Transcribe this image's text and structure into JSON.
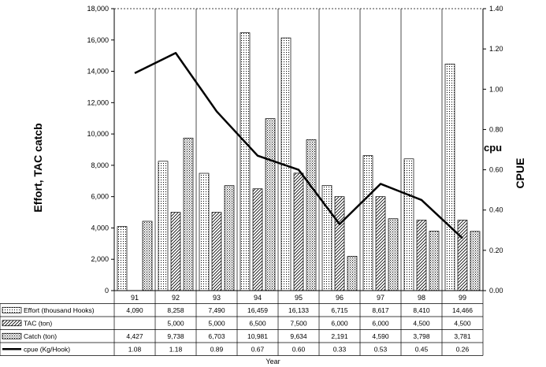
{
  "chart_data": {
    "type": "bar",
    "title": "",
    "xlabel": "Year",
    "ylabel": "Effort, TAC catcb",
    "y2label": "CPUE",
    "y2_inner_label": "cpu",
    "categories": [
      "91",
      "92",
      "93",
      "94",
      "95",
      "96",
      "97",
      "98",
      "99"
    ],
    "ylim": [
      0,
      18000
    ],
    "yticks": [
      "0",
      "2,000",
      "4,000",
      "6,000",
      "8,000",
      "10,000",
      "12,000",
      "14,000",
      "16,000",
      "18,000"
    ],
    "y2lim": [
      0,
      1.4
    ],
    "y2ticks": [
      "0.00",
      "0.20",
      "0.40",
      "0.60",
      "0.80",
      "1.00",
      "1.20",
      "1.40"
    ],
    "grid": "vertical",
    "series": [
      {
        "name": "Effort (thousand Hooks)",
        "kind": "bar",
        "pattern": "dots",
        "values": [
          4090,
          8258,
          7490,
          16459,
          16133,
          6715,
          8617,
          8410,
          14466
        ],
        "labels": [
          "4,090",
          "8,258",
          "7,490",
          "16,459",
          "16,133",
          "6,715",
          "8,617",
          "8,410",
          "14,466"
        ]
      },
      {
        "name": "TAC (ton)",
        "kind": "bar",
        "pattern": "hatch",
        "values": [
          null,
          5000,
          5000,
          6500,
          7500,
          6000,
          6000,
          4500,
          4500
        ],
        "labels": [
          "",
          "5,000",
          "5,000",
          "6,500",
          "7,500",
          "6,000",
          "6,000",
          "4,500",
          "4,500"
        ]
      },
      {
        "name": "Catch (ton)",
        "kind": "bar",
        "pattern": "grid",
        "values": [
          4427,
          9738,
          6703,
          10981,
          9634,
          2191,
          4590,
          3798,
          3781
        ],
        "labels": [
          "4,427",
          "9,738",
          "6,703",
          "10,981",
          "9,634",
          "2,191",
          "4,590",
          "3,798",
          "3,781"
        ]
      },
      {
        "name": "cpue (Kg/Hook)",
        "kind": "line",
        "axis": "right",
        "values": [
          1.08,
          1.18,
          0.89,
          0.67,
          0.6,
          0.33,
          0.53,
          0.45,
          0.26
        ],
        "labels": [
          "1.08",
          "1.18",
          "0.89",
          "0.67",
          "0.60",
          "0.33",
          "0.53",
          "0.45",
          "0.26"
        ]
      }
    ]
  }
}
